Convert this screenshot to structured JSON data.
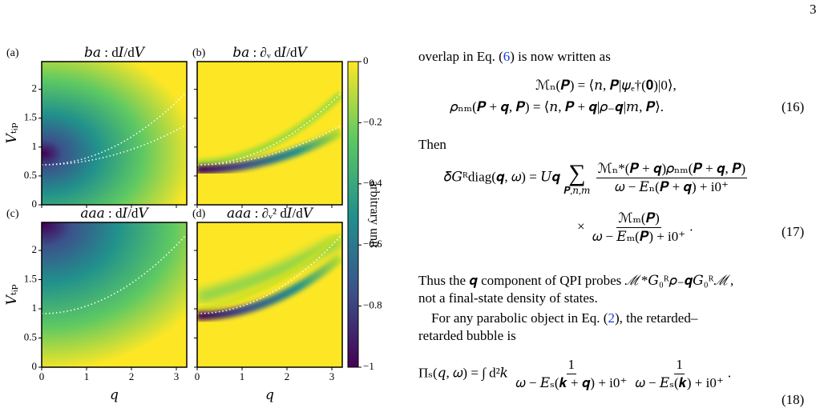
{
  "page_number": "3",
  "figure": {
    "panels": [
      {
        "label": "(a)",
        "title": "𝑏𝑎 : d𝐼/d𝑉"
      },
      {
        "label": "(b)",
        "title": "𝑏𝑎 : ∂ᵥ d𝐼/d𝑉"
      },
      {
        "label": "(c)",
        "title": "𝑎𝑎𝑎 : d𝐼/d𝑉"
      },
      {
        "label": "(d)",
        "title": "𝑎𝑎𝑎 : ∂ᵥ² d𝐼/d𝑉"
      }
    ],
    "y_label": "𝑉ₜᵢₚ",
    "x_label": "𝑞",
    "x_ticks": [
      "0",
      "1",
      "2",
      "3"
    ],
    "y_ticks": [
      "0",
      "0.5",
      "1",
      "1.5",
      "2"
    ],
    "colorbar": {
      "ticks": [
        "0",
        "−0.2",
        "−0.4",
        "−0.6",
        "−0.8",
        "−1"
      ],
      "label": "arbitrary unit"
    }
  },
  "text": {
    "intro": {
      "before": "overlap in Eq. (",
      "ref": "6",
      "after": ") is now written as"
    },
    "eq16": {
      "lines": [
        "ℳₙ(𝑷) = ⟨𝑛, 𝑷|𝜓ₑ†(𝟎)|0⟩,",
        "𝜌ₙₘ(𝑷 + 𝒒, 𝑷) = ⟨𝑛, 𝑷 + 𝒒|𝜌₋𝒒|𝑚, 𝑷⟩."
      ],
      "number": "(16)"
    },
    "then": "Then",
    "eq17": {
      "lhs": "𝛿𝐺ᴿdiag(𝒒, 𝜔) = 𝑈𝒒",
      "sum": "∑",
      "sum_sub": "𝑷,𝑛,𝑚",
      "frac1": {
        "num": "ℳₙ*(𝑷 + 𝒒)𝜌ₙₘ(𝑷 + 𝒒, 𝑷)",
        "den": "𝜔 − 𝐸ₙ(𝑷 + 𝒒) + i0⁺"
      },
      "times": "×",
      "frac2": {
        "num": "ℳₘ(𝑷)",
        "den": "𝜔 − 𝐸ₘ(𝑷) + i0⁺"
      },
      "end": ".",
      "number": "(17)"
    },
    "para1": [
      "Thus the 𝒒 component of QPI probes ℳ*𝐺₀ᴿ𝜌₋𝒒𝐺₀ᴿℳ,",
      "not a final-state density of states."
    ],
    "para2": {
      "before": "For any parabolic object in Eq. (",
      "ref": "2",
      "after": "), the retarded–",
      "line2": "retarded bubble is"
    },
    "eq18": {
      "lhs": "Πₛ(𝑞, 𝜔) = ∫ d²𝑘",
      "frac1": {
        "num": "1",
        "den": "𝜔 − 𝐸ₛ(𝒌 + 𝒒) + i0⁺"
      },
      "frac2": {
        "num": "1",
        "den": "𝜔 − 𝐸ₛ(𝒌) + i0⁺"
      },
      "end": ".",
      "number": "(18)"
    }
  }
}
